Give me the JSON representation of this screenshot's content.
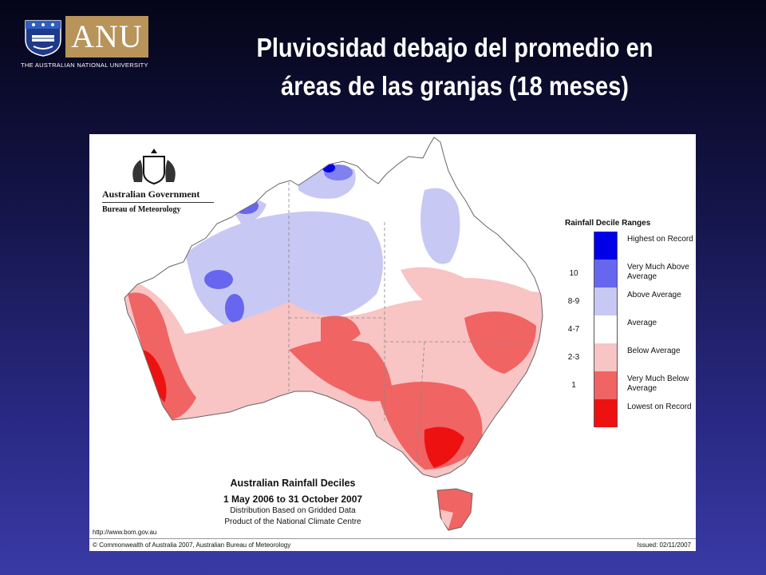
{
  "header": {
    "title_line1": "Pluviosidad debajo del promedio en",
    "title_line2": "áreas de las granjas (18 meses)"
  },
  "logo": {
    "wordmark": "ANU",
    "subtitle": "THE AUSTRALIAN NATIONAL UNIVERSITY"
  },
  "agency": {
    "government": "Australian Government",
    "bureau": "Bureau of Meteorology"
  },
  "legend": {
    "title": "Rainfall Decile Ranges",
    "items": [
      {
        "code": "",
        "label": "Highest on Record",
        "color": "#0000e6"
      },
      {
        "code": "10",
        "label": "Very Much Above Average",
        "color": "#6666ee"
      },
      {
        "code": "8-9",
        "label": "Above Average",
        "color": "#c8c8f4"
      },
      {
        "code": "4-7",
        "label": "Average",
        "color": "#ffffff"
      },
      {
        "code": "2-3",
        "label": "Below Average",
        "color": "#f8c4c4"
      },
      {
        "code": "1",
        "label": "Very Much Below Average",
        "color": "#f06464"
      },
      {
        "code": "",
        "label": "Lowest on Record",
        "color": "#ee1111"
      }
    ]
  },
  "caption": {
    "line1": "Australian Rainfall Deciles",
    "line2": "1 May 2006 to 31 October 2007",
    "line3": "Distribution Based on Gridded Data",
    "line4": "Product of the National Climate Centre"
  },
  "footer": {
    "url": "http://www.bom.gov.au",
    "copyright": "© Commonwealth of Australia 2007, Australian Bureau of Meteorology",
    "issued": "Issued: 02/11/2007"
  },
  "colors": {
    "background_top": "#050518",
    "background_bottom": "#3a3aa6",
    "anu_gold": "#b8935a"
  }
}
